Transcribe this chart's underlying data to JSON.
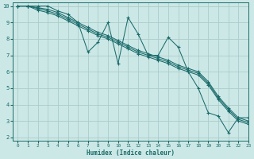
{
  "xlabel": "Humidex (Indice chaleur)",
  "bg_color": "#cce8e6",
  "grid_color": "#aaccca",
  "line_color": "#1a6b6b",
  "xlim": [
    -0.5,
    23
  ],
  "ylim": [
    1.8,
    10.2
  ],
  "xticks": [
    0,
    1,
    2,
    3,
    4,
    5,
    6,
    7,
    8,
    9,
    10,
    11,
    12,
    13,
    14,
    15,
    16,
    17,
    18,
    19,
    20,
    21,
    22,
    23
  ],
  "yticks": [
    2,
    3,
    4,
    5,
    6,
    7,
    8,
    9,
    10
  ],
  "lines": [
    {
      "x": [
        0,
        1,
        2,
        3,
        4,
        5,
        6,
        7,
        8,
        9,
        10,
        11,
        12,
        13,
        14,
        15,
        16,
        17,
        18,
        19,
        20,
        21,
        22,
        23
      ],
      "y": [
        10,
        10,
        10,
        10,
        9.7,
        9.5,
        9.0,
        7.2,
        7.8,
        9.0,
        6.5,
        9.3,
        8.3,
        7.0,
        7.0,
        8.1,
        7.5,
        6.0,
        5.0,
        3.5,
        3.3,
        2.3,
        3.2,
        3.2
      ]
    },
    {
      "x": [
        0,
        1,
        2,
        3,
        4,
        5,
        6,
        7,
        8,
        9,
        10,
        11,
        12,
        13,
        14,
        15,
        16,
        17,
        18,
        19,
        20,
        21,
        22,
        23
      ],
      "y": [
        10,
        10,
        9.9,
        9.8,
        9.6,
        9.3,
        9.0,
        8.7,
        8.4,
        8.2,
        7.9,
        7.6,
        7.3,
        7.1,
        6.9,
        6.7,
        6.4,
        6.2,
        6.0,
        5.4,
        4.5,
        3.8,
        3.2,
        3.0
      ]
    },
    {
      "x": [
        0,
        1,
        2,
        3,
        4,
        5,
        6,
        7,
        8,
        9,
        10,
        11,
        12,
        13,
        14,
        15,
        16,
        17,
        18,
        19,
        20,
        21,
        22,
        23
      ],
      "y": [
        10,
        10,
        9.85,
        9.7,
        9.5,
        9.2,
        8.9,
        8.6,
        8.3,
        8.1,
        7.8,
        7.5,
        7.2,
        7.0,
        6.8,
        6.6,
        6.3,
        6.1,
        5.9,
        5.3,
        4.4,
        3.7,
        3.1,
        2.9
      ]
    },
    {
      "x": [
        0,
        1,
        2,
        3,
        4,
        5,
        6,
        7,
        8,
        9,
        10,
        11,
        12,
        13,
        14,
        15,
        16,
        17,
        18,
        19,
        20,
        21,
        22,
        23
      ],
      "y": [
        10,
        10,
        9.75,
        9.6,
        9.4,
        9.1,
        8.8,
        8.5,
        8.2,
        8.0,
        7.7,
        7.4,
        7.1,
        6.9,
        6.7,
        6.5,
        6.2,
        6.0,
        5.8,
        5.2,
        4.3,
        3.6,
        3.0,
        2.8
      ]
    }
  ]
}
